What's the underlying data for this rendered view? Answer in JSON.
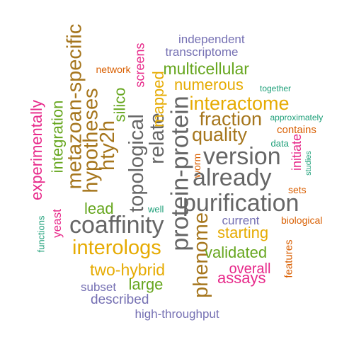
{
  "colors": {
    "teal": "#1b9e77",
    "orange": "#d95f02",
    "purple": "#7570b3",
    "magenta": "#e7298a",
    "green": "#66a61e",
    "gold": "#e6ab02",
    "brown": "#a6761d",
    "gray": "#666666"
  },
  "words": [
    {
      "text": "independent",
      "color": "purple"
    },
    {
      "text": "transcriptome",
      "color": "purple"
    },
    {
      "text": "network",
      "color": "orange"
    },
    {
      "text": "screens",
      "color": "magenta"
    },
    {
      "text": "multicellular",
      "color": "green"
    },
    {
      "text": "numerous",
      "color": "gold"
    },
    {
      "text": "together",
      "color": "teal"
    },
    {
      "text": "metazoan-specific",
      "color": "brown"
    },
    {
      "text": "integration",
      "color": "green"
    },
    {
      "text": "experimentally",
      "color": "magenta"
    },
    {
      "text": "hypotheses",
      "color": "brown"
    },
    {
      "text": "hty2h",
      "color": "brown"
    },
    {
      "text": "silico",
      "color": "green"
    },
    {
      "text": "topological",
      "color": "gray"
    },
    {
      "text": "relate",
      "color": "gray"
    },
    {
      "text": "mapped",
      "color": "gold"
    },
    {
      "text": "protein-protein",
      "color": "gray"
    },
    {
      "text": "interactome",
      "color": "gold"
    },
    {
      "text": "fraction",
      "color": "brown"
    },
    {
      "text": "approximately",
      "color": "teal"
    },
    {
      "text": "contains",
      "color": "orange"
    },
    {
      "text": "quality",
      "color": "brown"
    },
    {
      "text": "data",
      "color": "teal"
    },
    {
      "text": "initiate",
      "color": "magenta"
    },
    {
      "text": "studies",
      "color": "teal"
    },
    {
      "text": "version",
      "color": "gray"
    },
    {
      "text": "worm",
      "color": "orange"
    },
    {
      "text": "already",
      "color": "gray"
    },
    {
      "text": "sets",
      "color": "orange"
    },
    {
      "text": "purification",
      "color": "gray"
    },
    {
      "text": "lead",
      "color": "green"
    },
    {
      "text": "well",
      "color": "teal"
    },
    {
      "text": "current",
      "color": "purple"
    },
    {
      "text": "biological",
      "color": "orange"
    },
    {
      "text": "functions",
      "color": "teal"
    },
    {
      "text": "yeast",
      "color": "magenta"
    },
    {
      "text": "coaffinity",
      "color": "gray"
    },
    {
      "text": "phenome",
      "color": "brown"
    },
    {
      "text": "starting",
      "color": "gold"
    },
    {
      "text": "interologs",
      "color": "gold"
    },
    {
      "text": "validated",
      "color": "green"
    },
    {
      "text": "features",
      "color": "orange"
    },
    {
      "text": "overall",
      "color": "magenta"
    },
    {
      "text": "two-hybrid",
      "color": "gold"
    },
    {
      "text": "assays",
      "color": "magenta"
    },
    {
      "text": "subset",
      "color": "purple"
    },
    {
      "text": "large",
      "color": "green"
    },
    {
      "text": "described",
      "color": "purple"
    },
    {
      "text": "high-throughput",
      "color": "purple"
    }
  ]
}
